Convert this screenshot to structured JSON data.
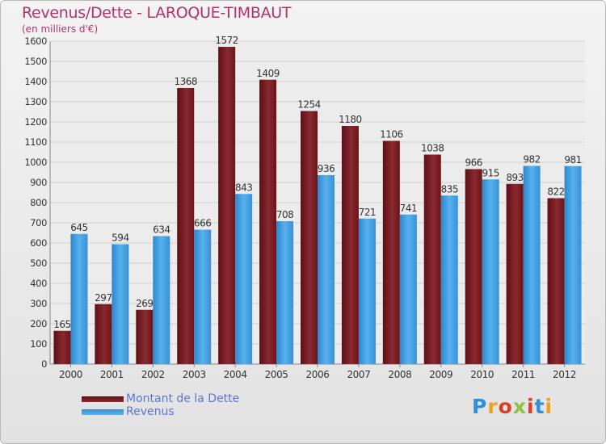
{
  "colors": {
    "debt": "#7a1a1f",
    "revenue": "#3f9ee0",
    "title": "#b2336a",
    "legend_text": "#5c74d6"
  },
  "logo": {
    "text": "Proxiti",
    "letters": [
      "P",
      "r",
      "o",
      "x",
      "i",
      "t",
      "i"
    ],
    "letter_colors": [
      "#2f8fd8",
      "#f0a020",
      "#e03a2a",
      "#8cc43c",
      "#e03a2a",
      "#2f8fd8",
      "#f0a020"
    ]
  },
  "chart_data": {
    "type": "bar",
    "title": "Revenus/Dette - LAROQUE-TIMBAUT",
    "subtitle": "(en milliers d'€)",
    "categories": [
      "2000",
      "2001",
      "2002",
      "2003",
      "2004",
      "2005",
      "2006",
      "2007",
      "2008",
      "2009",
      "2010",
      "2011",
      "2012"
    ],
    "series": [
      {
        "name": "Montant de la Dette",
        "values": [
          165,
          297,
          269,
          1368,
          1572,
          1409,
          1254,
          1180,
          1106,
          1038,
          966,
          893,
          822
        ]
      },
      {
        "name": "Revenus",
        "values": [
          645,
          594,
          634,
          666,
          843,
          708,
          936,
          721,
          741,
          835,
          915,
          982,
          981
        ]
      }
    ],
    "ylim": [
      0,
      1600
    ],
    "yticks": [
      0,
      100,
      200,
      300,
      400,
      500,
      600,
      700,
      800,
      900,
      1000,
      1100,
      1200,
      1300,
      1400,
      1500,
      1600
    ],
    "grid": true,
    "legend_position": "bottom-left"
  }
}
